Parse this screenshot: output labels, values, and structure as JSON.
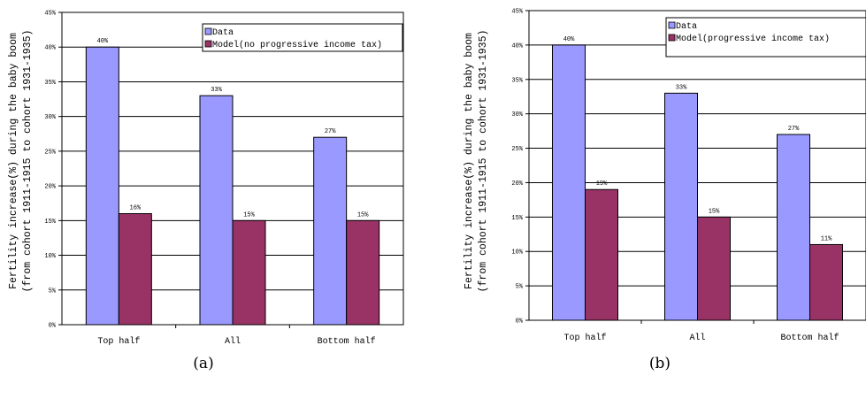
{
  "chart_data": [
    {
      "type": "bar",
      "categories": [
        "Top half",
        "All",
        "Bottom half"
      ],
      "series": [
        {
          "name": "Data",
          "values": [
            40,
            33,
            27
          ],
          "labels": [
            "40%",
            "33%",
            "27%"
          ],
          "color": "#9999ff"
        },
        {
          "name": "Model(no progressive income tax)",
          "values": [
            16,
            15,
            15
          ],
          "labels": [
            "16%",
            "15%",
            "15%"
          ],
          "color": "#993366"
        }
      ],
      "ylabel_lines": [
        "Fertility increase(%) during the baby boom",
        "(from cohort 1911-1915 to cohort 1931-1935)"
      ],
      "ylim": [
        0,
        45
      ],
      "yticks": [
        "0%",
        "5%",
        "10%",
        "15%",
        "20%",
        "25%",
        "30%",
        "35%",
        "40%",
        "45%"
      ],
      "grid": true,
      "legend": "top-right",
      "caption": "(a)"
    },
    {
      "type": "bar",
      "categories": [
        "Top half",
        "All",
        "Bottom half"
      ],
      "series": [
        {
          "name": "Data",
          "values": [
            40,
            33,
            27
          ],
          "labels": [
            "40%",
            "33%",
            "27%"
          ],
          "color": "#9999ff"
        },
        {
          "name": "Model(progressive income tax)",
          "values": [
            19,
            15,
            11
          ],
          "labels": [
            "19%",
            "15%",
            "11%"
          ],
          "color": "#993366"
        }
      ],
      "ylabel_lines": [
        "Fertility increase(%) during the baby boom",
        "(from cohort 1911-1915 to cohort 1931-1935)"
      ],
      "ylim": [
        0,
        45
      ],
      "yticks": [
        "0%",
        "5%",
        "10%",
        "15%",
        "20%",
        "25%",
        "30%",
        "35%",
        "40%",
        "45%"
      ],
      "grid": true,
      "legend": "top-right",
      "caption": "(b)"
    }
  ]
}
